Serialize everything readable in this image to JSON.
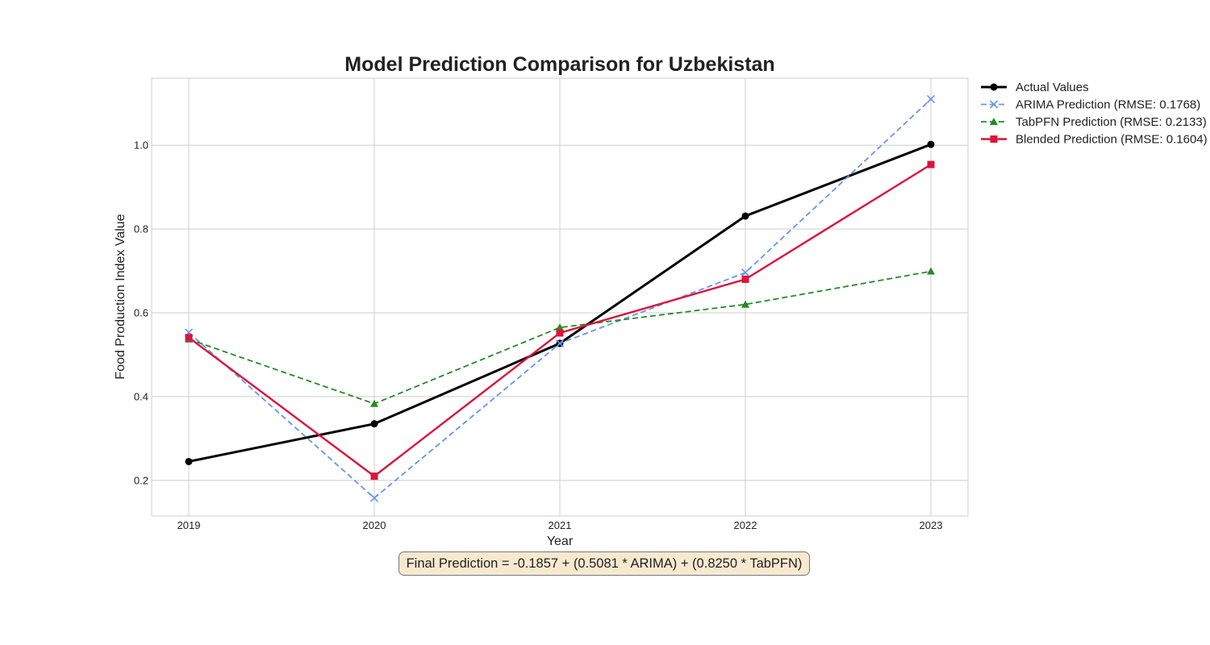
{
  "chart_data": {
    "type": "line",
    "title": "Model Prediction Comparison for Uzbekistan",
    "xlabel": "Year",
    "ylabel": "Food Production Index Value",
    "x": [
      2019,
      2020,
      2021,
      2022,
      2023
    ],
    "xlim": [
      2018.8,
      2023.2
    ],
    "ylim": [
      0.115,
      1.16
    ],
    "yticks": [
      0.2,
      0.4,
      0.6,
      0.8,
      1.0
    ],
    "yticklabels": [
      "0.2",
      "0.4",
      "0.6",
      "0.8",
      "1.0"
    ],
    "xticklabels": [
      "2019",
      "2020",
      "2021",
      "2022",
      "2023"
    ],
    "grid": true,
    "legend_position": "outside top-right",
    "series": [
      {
        "name": "Actual Values",
        "values": [
          0.245,
          0.335,
          0.527,
          0.831,
          1.002
        ],
        "color": "#000000",
        "marker": "circle",
        "line_style": "solid"
      },
      {
        "name": "ARIMA Prediction (RMSE: 0.1768)",
        "values": [
          0.553,
          0.158,
          0.527,
          0.696,
          1.11
        ],
        "color": "#6495ed",
        "marker": "x",
        "line_style": "dashed"
      },
      {
        "name": "TabPFN Prediction (RMSE: 0.2133)",
        "values": [
          0.537,
          0.383,
          0.565,
          0.62,
          0.699
        ],
        "color": "#228b22",
        "marker": "triangle",
        "line_style": "dashed"
      },
      {
        "name": "Blended Prediction (RMSE: 0.1604)",
        "values": [
          0.541,
          0.21,
          0.552,
          0.68,
          0.954
        ],
        "color": "#dc143c",
        "marker": "square",
        "line_style": "solid"
      }
    ],
    "annotation": "Final Prediction = -0.1857 + (0.5081 * ARIMA) + (0.8250 * TabPFN)"
  }
}
